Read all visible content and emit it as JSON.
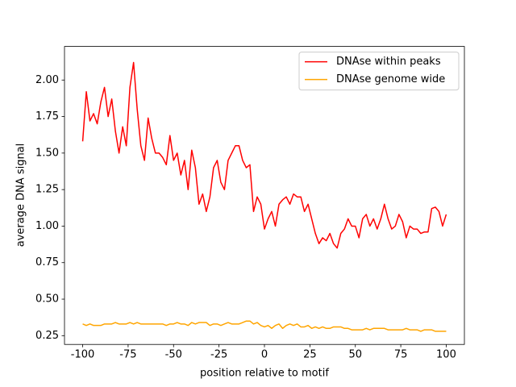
{
  "chart_data": {
    "type": "line",
    "xlabel": "position relative to motif",
    "ylabel": "average DNA signal",
    "x": [
      -100,
      -98,
      -96,
      -94,
      -92,
      -90,
      -88,
      -86,
      -84,
      -82,
      -80,
      -78,
      -76,
      -74,
      -72,
      -70,
      -68,
      -66,
      -64,
      -62,
      -60,
      -58,
      -56,
      -54,
      -52,
      -50,
      -48,
      -46,
      -44,
      -42,
      -40,
      -38,
      -36,
      -34,
      -32,
      -30,
      -28,
      -26,
      -24,
      -22,
      -20,
      -18,
      -16,
      -14,
      -12,
      -10,
      -8,
      -6,
      -4,
      -2,
      0,
      2,
      4,
      6,
      8,
      10,
      12,
      14,
      16,
      18,
      20,
      22,
      24,
      26,
      28,
      30,
      32,
      34,
      36,
      38,
      40,
      42,
      44,
      46,
      48,
      50,
      52,
      54,
      56,
      58,
      60,
      62,
      64,
      66,
      68,
      70,
      72,
      74,
      76,
      78,
      80,
      82,
      84,
      86,
      88,
      90,
      92,
      94,
      96,
      98,
      100
    ],
    "series": [
      {
        "name": "DNAse within peaks",
        "color": "#ff0000",
        "values": [
          1.58,
          1.92,
          1.72,
          1.77,
          1.7,
          1.85,
          1.95,
          1.75,
          1.87,
          1.65,
          1.5,
          1.68,
          1.55,
          1.95,
          2.12,
          1.8,
          1.55,
          1.45,
          1.74,
          1.6,
          1.5,
          1.5,
          1.47,
          1.42,
          1.62,
          1.45,
          1.5,
          1.35,
          1.45,
          1.25,
          1.52,
          1.4,
          1.15,
          1.22,
          1.1,
          1.2,
          1.4,
          1.45,
          1.3,
          1.25,
          1.45,
          1.5,
          1.55,
          1.55,
          1.45,
          1.4,
          1.42,
          1.1,
          1.2,
          1.15,
          0.98,
          1.05,
          1.1,
          1.0,
          1.15,
          1.18,
          1.2,
          1.15,
          1.22,
          1.2,
          1.2,
          1.1,
          1.15,
          1.05,
          0.95,
          0.88,
          0.92,
          0.9,
          0.95,
          0.88,
          0.85,
          0.95,
          0.98,
          1.05,
          1.0,
          1.0,
          0.92,
          1.05,
          1.08,
          1.0,
          1.05,
          0.98,
          1.05,
          1.15,
          1.05,
          0.98,
          1.0,
          1.08,
          1.03,
          0.92,
          1.0,
          0.98,
          0.98,
          0.95,
          0.96,
          0.96,
          1.12,
          1.13,
          1.1,
          1.0,
          1.08
        ]
      },
      {
        "name": "DNAse genome wide",
        "color": "#ffa500",
        "values": [
          0.33,
          0.32,
          0.33,
          0.32,
          0.32,
          0.32,
          0.33,
          0.33,
          0.33,
          0.34,
          0.33,
          0.33,
          0.33,
          0.34,
          0.33,
          0.34,
          0.33,
          0.33,
          0.33,
          0.33,
          0.33,
          0.33,
          0.33,
          0.32,
          0.33,
          0.33,
          0.34,
          0.33,
          0.33,
          0.32,
          0.34,
          0.33,
          0.34,
          0.34,
          0.34,
          0.32,
          0.33,
          0.33,
          0.32,
          0.33,
          0.34,
          0.33,
          0.33,
          0.33,
          0.34,
          0.35,
          0.35,
          0.33,
          0.34,
          0.32,
          0.31,
          0.32,
          0.3,
          0.32,
          0.33,
          0.3,
          0.32,
          0.33,
          0.32,
          0.33,
          0.31,
          0.31,
          0.32,
          0.3,
          0.31,
          0.3,
          0.31,
          0.3,
          0.3,
          0.31,
          0.31,
          0.31,
          0.3,
          0.3,
          0.29,
          0.29,
          0.29,
          0.29,
          0.3,
          0.29,
          0.3,
          0.3,
          0.3,
          0.3,
          0.29,
          0.29,
          0.29,
          0.29,
          0.29,
          0.3,
          0.29,
          0.29,
          0.29,
          0.28,
          0.29,
          0.29,
          0.29,
          0.28,
          0.28,
          0.28,
          0.28
        ]
      }
    ],
    "xlim": [
      -110,
      110
    ],
    "ylim": [
      0.19,
      2.23
    ],
    "xticks": [
      -100,
      -75,
      -50,
      -25,
      0,
      25,
      50,
      75,
      100
    ],
    "yticks": [
      0.25,
      {
        "value": 0.5,
        "label": "0.50"
      },
      0.75,
      {
        "value": 1,
        "label": "1.00"
      },
      1.25,
      {
        "value": 1.5,
        "label": "1.50"
      },
      1.75,
      {
        "value": 2,
        "label": "2.00"
      }
    ],
    "legend": "upper right",
    "grid": false
  }
}
